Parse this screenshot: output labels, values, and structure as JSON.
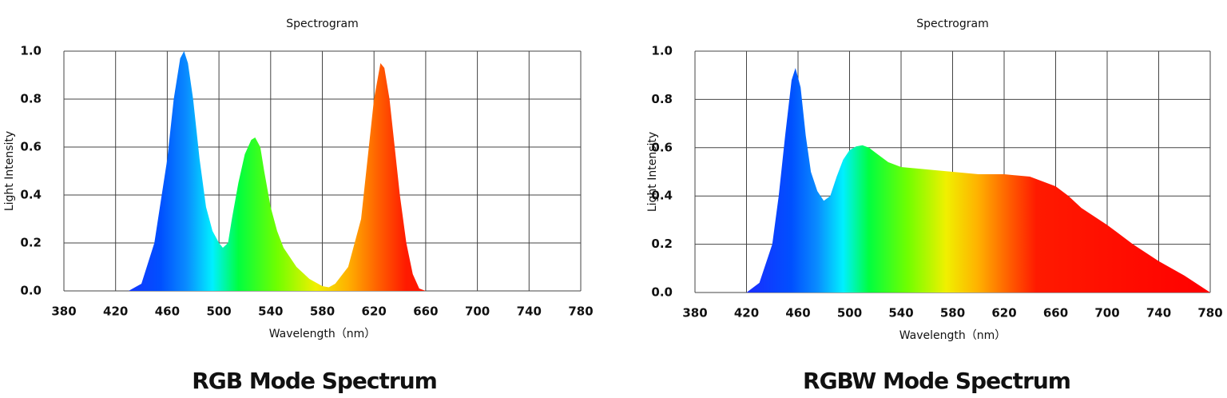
{
  "chart_data": [
    {
      "type": "area",
      "title": "Spectrogram",
      "xlabel": "Wavelength（nm）",
      "ylabel": "Light Intensity",
      "caption": "RGB Mode Spectrum",
      "x": [
        380,
        420,
        430,
        440,
        450,
        460,
        465,
        470,
        473,
        476,
        480,
        485,
        490,
        495,
        500,
        503,
        507,
        510,
        515,
        520,
        525,
        528,
        532,
        535,
        540,
        545,
        550,
        560,
        570,
        580,
        585,
        590,
        600,
        610,
        615,
        620,
        625,
        628,
        632,
        640,
        645,
        650,
        655,
        660
      ],
      "values": [
        0,
        0,
        0,
        0.03,
        0.2,
        0.55,
        0.8,
        0.97,
        1.0,
        0.95,
        0.8,
        0.55,
        0.35,
        0.25,
        0.2,
        0.18,
        0.2,
        0.3,
        0.45,
        0.57,
        0.63,
        0.64,
        0.6,
        0.5,
        0.35,
        0.25,
        0.18,
        0.1,
        0.05,
        0.02,
        0.015,
        0.03,
        0.1,
        0.3,
        0.55,
        0.8,
        0.95,
        0.93,
        0.8,
        0.4,
        0.2,
        0.07,
        0.01,
        0
      ],
      "xlim": [
        380,
        780
      ],
      "ylim": [
        0,
        1.0
      ],
      "xticks": [
        380,
        420,
        460,
        500,
        540,
        580,
        620,
        660,
        700,
        740,
        780
      ],
      "yticks": [
        {
          "value": 0,
          "label": "0.0"
        },
        0.2,
        0.4,
        0.6,
        0.8,
        {
          "value": 1,
          "label": "1.0"
        }
      ],
      "grid": true
    },
    {
      "type": "area",
      "title": "Spectrogram",
      "xlabel": "Wavelength（nm）",
      "ylabel": "Light Intensity",
      "caption": "RGBW Mode Spectrum",
      "x": [
        380,
        420,
        430,
        440,
        445,
        450,
        455,
        458,
        462,
        466,
        470,
        475,
        480,
        485,
        490,
        495,
        500,
        505,
        510,
        515,
        520,
        530,
        540,
        560,
        580,
        600,
        620,
        640,
        660,
        670,
        680,
        700,
        720,
        740,
        760,
        780
      ],
      "values": [
        0,
        0,
        0.04,
        0.2,
        0.4,
        0.65,
        0.88,
        0.93,
        0.85,
        0.65,
        0.5,
        0.42,
        0.38,
        0.4,
        0.48,
        0.55,
        0.59,
        0.605,
        0.61,
        0.6,
        0.58,
        0.54,
        0.52,
        0.51,
        0.5,
        0.49,
        0.49,
        0.48,
        0.44,
        0.4,
        0.35,
        0.28,
        0.2,
        0.13,
        0.07,
        0
      ],
      "xlim": [
        380,
        780
      ],
      "ylim": [
        0,
        1.0
      ],
      "xticks": [
        380,
        420,
        460,
        500,
        540,
        580,
        620,
        660,
        700,
        740,
        780
      ],
      "yticks": [
        {
          "value": 0,
          "label": "0.0"
        },
        0.2,
        0.4,
        0.6,
        0.8,
        {
          "value": 1,
          "label": "1.0"
        }
      ],
      "grid": true
    }
  ]
}
